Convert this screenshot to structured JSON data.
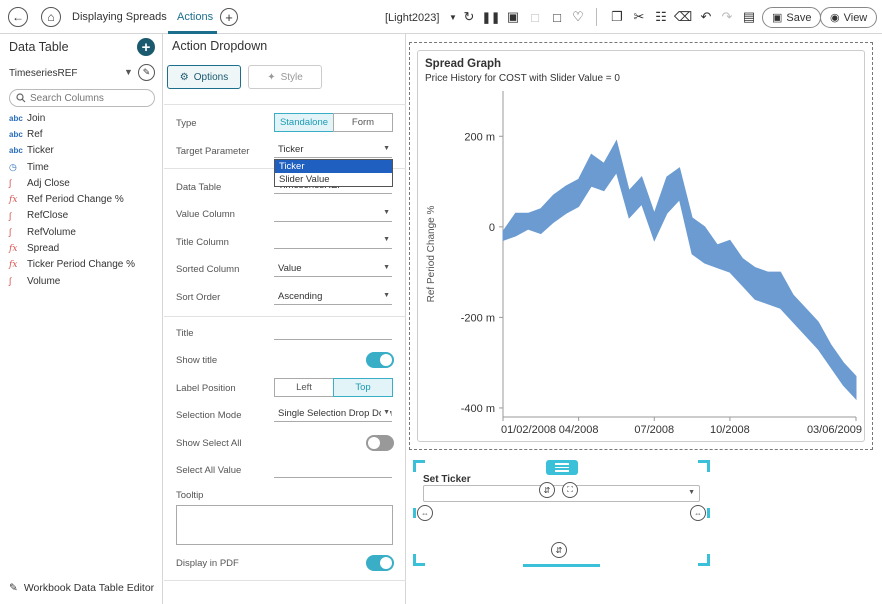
{
  "topbar": {
    "breadcrumb": "Displaying Spreads",
    "active_tab": "Actions",
    "theme": "[Light2023]",
    "save_label": "Save",
    "view_label": "View"
  },
  "left_panel": {
    "title": "Data Table",
    "datasource": "TimeseriesREF",
    "search_placeholder": "Search Columns",
    "columns": [
      {
        "label": "Join",
        "type": "abc"
      },
      {
        "label": "Ref",
        "type": "abc"
      },
      {
        "label": "Ticker",
        "type": "abc"
      },
      {
        "label": "Time",
        "type": "time"
      },
      {
        "label": "Adj Close",
        "type": "num"
      },
      {
        "label": "Ref Period Change %",
        "type": "fx"
      },
      {
        "label": "RefClose",
        "type": "num"
      },
      {
        "label": "RefVolume",
        "type": "num"
      },
      {
        "label": "Spread",
        "type": "fx"
      },
      {
        "label": "Ticker Period Change %",
        "type": "fx"
      },
      {
        "label": "Volume",
        "type": "num"
      }
    ],
    "footer_link": "Workbook Data Table Editor"
  },
  "middle_panel": {
    "title": "Action Dropdown",
    "options_tab": "Options",
    "style_tab": "Style",
    "type_label": "Type",
    "type_options": [
      "Standalone",
      "Form"
    ],
    "type_selected": "Standalone",
    "target_param_label": "Target Parameter",
    "target_param_value": "Ticker",
    "target_param_options": [
      "Ticker",
      "Slider Value"
    ],
    "data_table_label": "Data Table",
    "data_table_value": "TimeseriesREF",
    "value_column_label": "Value Column",
    "value_column_value": "",
    "title_column_label": "Title Column",
    "title_column_value": "",
    "sorted_column_label": "Sorted Column",
    "sorted_column_value": "Value",
    "sort_order_label": "Sort Order",
    "sort_order_value": "Ascending",
    "title_label": "Title",
    "title_value": "",
    "show_title_label": "Show title",
    "show_title": true,
    "label_position_label": "Label Position",
    "label_position_options": [
      "Left",
      "Top"
    ],
    "label_position_selected": "Top",
    "selection_mode_label": "Selection Mode",
    "selection_mode_value": "Single Selection Drop Down",
    "show_select_all_label": "Show Select All",
    "show_select_all": false,
    "select_all_value_label": "Select All Value",
    "select_all_value": "",
    "tooltip_label": "Tooltip",
    "tooltip_value": "",
    "display_pdf_label": "Display in PDF",
    "display_pdf": true
  },
  "graph": {
    "title": "Spread Graph",
    "subtitle": "Price History for COST with Slider Value = 0"
  },
  "chart_data": {
    "type": "area",
    "ylabel": "Ref Period Change %",
    "ylim": [
      -420,
      300
    ],
    "yticks": [
      {
        "value": 200,
        "label": "200 m"
      },
      {
        "value": 0,
        "label": "0"
      },
      {
        "value": -200,
        "label": "-200 m"
      },
      {
        "value": -400,
        "label": "-400 m"
      }
    ],
    "xticks": [
      {
        "value": 0,
        "label": "01/02/2008"
      },
      {
        "value": 3,
        "label": "04/2008"
      },
      {
        "value": 6,
        "label": "07/2008"
      },
      {
        "value": 9,
        "label": "10/2008"
      },
      {
        "value": 14,
        "label": "03/06/2009"
      }
    ],
    "xlim": [
      0,
      14
    ],
    "series": [
      {
        "color": "#6b9bd1",
        "x": [
          0,
          0.5,
          1,
          1.5,
          2,
          2.5,
          3,
          3.5,
          4,
          4.5,
          5,
          5.5,
          6,
          6.5,
          7,
          7.5,
          8,
          8.5,
          9,
          9.5,
          10,
          10.5,
          11,
          11.5,
          12,
          12.5,
          13,
          13.5,
          14
        ],
        "upper": [
          -10,
          30,
          30,
          40,
          70,
          90,
          105,
          160,
          140,
          190,
          80,
          110,
          30,
          110,
          130,
          20,
          0,
          -40,
          -30,
          -70,
          -90,
          -100,
          -100,
          -150,
          -180,
          -210,
          -260,
          -300,
          -330
        ],
        "lower": [
          -30,
          -20,
          -5,
          -15,
          10,
          30,
          45,
          90,
          80,
          120,
          20,
          50,
          -30,
          30,
          60,
          -60,
          -80,
          -90,
          -100,
          -130,
          -160,
          -170,
          -180,
          -210,
          -240,
          -270,
          -310,
          -350,
          -380
        ]
      }
    ],
    "negative_highlight_color": "#d9534f",
    "grid": false
  },
  "ticker_widget": {
    "title": "Set Ticker",
    "value": ""
  }
}
